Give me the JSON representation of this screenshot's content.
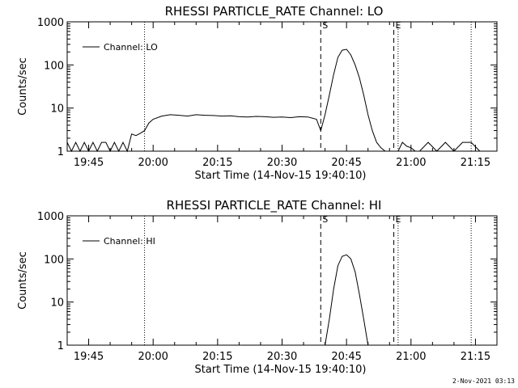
{
  "footer": {
    "timestamp": "2-Nov-2021 03:13"
  },
  "chart_data": [
    {
      "type": "line",
      "title": "RHESSI PARTICLE_RATE Channel: LO",
      "xlabel": "Start Time (14-Nov-15 19:40:10)",
      "ylabel": "Counts/sec",
      "yscale": "log",
      "ylim": [
        1,
        1000
      ],
      "yticks": [
        "1",
        "10",
        "100",
        "1000"
      ],
      "xlim": [
        "19:40",
        "21:20"
      ],
      "xticks": [
        "19:45",
        "20:00",
        "20:15",
        "20:30",
        "20:45",
        "21:00",
        "21:15"
      ],
      "legend": {
        "entries": [
          "Channel: LO"
        ],
        "position": "top-left"
      },
      "markers": [
        {
          "label": "S",
          "time": "20:39",
          "style": "dashed"
        },
        {
          "label": "E",
          "time": "20:56",
          "style": "dashed"
        }
      ],
      "dotted_lines": [
        "19:58",
        "20:57",
        "21:14"
      ],
      "series": [
        {
          "name": "Channel: LO",
          "x": [
            "19:40",
            "19:41",
            "19:42",
            "19:43",
            "19:44",
            "19:45",
            "19:46",
            "19:47",
            "19:48",
            "19:49",
            "19:50",
            "19:51",
            "19:52",
            "19:53",
            "19:54",
            "19:55",
            "19:56",
            "19:57",
            "19:58",
            "19:59",
            "20:00",
            "20:02",
            "20:04",
            "20:06",
            "20:08",
            "20:10",
            "20:12",
            "20:14",
            "20:16",
            "20:18",
            "20:20",
            "20:22",
            "20:24",
            "20:26",
            "20:28",
            "20:30",
            "20:32",
            "20:34",
            "20:36",
            "20:38",
            "20:39",
            "20:40",
            "20:41",
            "20:42",
            "20:43",
            "20:44",
            "20:45",
            "20:46",
            "20:47",
            "20:48",
            "20:49",
            "20:50",
            "20:51",
            "20:52",
            "20:53",
            "20:54",
            "20:55",
            "20:56",
            "20:57",
            "20:58",
            "20:59",
            "21:00",
            "21:01",
            "21:02",
            "21:04",
            "21:06",
            "21:08",
            "21:10",
            "21:12",
            "21:14",
            "21:16"
          ],
          "y": [
            1.6,
            1,
            1.6,
            1,
            1.6,
            1,
            1.6,
            1,
            1.6,
            1.6,
            1,
            1.6,
            1,
            1.6,
            1,
            2.5,
            2.3,
            2.6,
            3,
            4.5,
            5.5,
            6.5,
            7,
            6.8,
            6.5,
            7,
            6.8,
            6.7,
            6.5,
            6.6,
            6.3,
            6.2,
            6.4,
            6.3,
            6.1,
            6.2,
            6,
            6.3,
            6.2,
            5.5,
            3,
            7,
            20,
            60,
            150,
            220,
            230,
            170,
            100,
            50,
            20,
            7,
            3,
            1.6,
            1.2,
            1,
            1,
            1,
            1,
            1.6,
            1.3,
            1.2,
            1,
            1,
            1.6,
            1,
            1.6,
            1,
            1.6,
            1.6,
            1
          ]
        }
      ]
    },
    {
      "type": "line",
      "title": "RHESSI PARTICLE_RATE Channel: HI",
      "xlabel": "Start Time (14-Nov-15 19:40:10)",
      "ylabel": "Counts/sec",
      "yscale": "log",
      "ylim": [
        1,
        1000
      ],
      "yticks": [
        "1",
        "10",
        "100",
        "1000"
      ],
      "xlim": [
        "19:40",
        "21:20"
      ],
      "xticks": [
        "19:45",
        "20:00",
        "20:15",
        "20:30",
        "20:45",
        "21:00",
        "21:15"
      ],
      "legend": {
        "entries": [
          "Channel: HI"
        ],
        "position": "top-left"
      },
      "markers": [
        {
          "label": "S",
          "time": "20:39",
          "style": "dashed"
        },
        {
          "label": "E",
          "time": "20:56",
          "style": "dashed"
        }
      ],
      "dotted_lines": [
        "19:58",
        "20:57",
        "21:14"
      ],
      "series": [
        {
          "name": "Channel: HI",
          "x": [
            "20:40",
            "20:41",
            "20:42",
            "20:43",
            "20:44",
            "20:45",
            "20:46",
            "20:47",
            "20:48",
            "20:49",
            "20:50"
          ],
          "y": [
            1,
            4,
            20,
            70,
            115,
            125,
            100,
            50,
            15,
            4,
            1
          ]
        }
      ]
    }
  ]
}
